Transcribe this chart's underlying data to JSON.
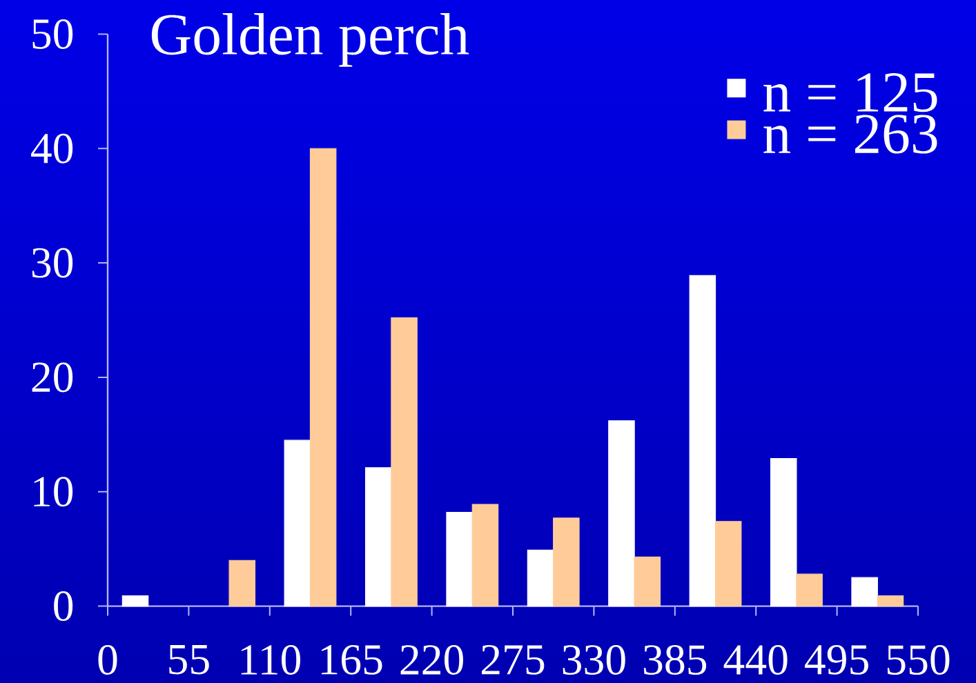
{
  "chart_data": {
    "type": "histogram",
    "title": "Golden perch",
    "bins": [
      0,
      55,
      110,
      165,
      220,
      275,
      330,
      385,
      440,
      495,
      550
    ],
    "series": [
      {
        "name": "n = 125",
        "color": "#ffffff",
        "values": [
          0.9,
          0,
          14.5,
          12.1,
          8.2,
          4.9,
          16.2,
          28.9,
          12.9,
          2.5
        ]
      },
      {
        "name": "n = 263",
        "color": "#ffcc99",
        "values": [
          0,
          4.0,
          40.0,
          25.2,
          8.9,
          7.7,
          4.3,
          7.4,
          2.8,
          0.9
        ]
      }
    ],
    "xlim": [
      0,
      550
    ],
    "xticks": [
      0,
      55,
      110,
      165,
      220,
      275,
      330,
      385,
      440,
      495,
      550
    ],
    "ylim": [
      0,
      50
    ],
    "yticks": [
      0,
      10,
      20,
      30,
      40,
      50
    ],
    "legend": "top right"
  }
}
